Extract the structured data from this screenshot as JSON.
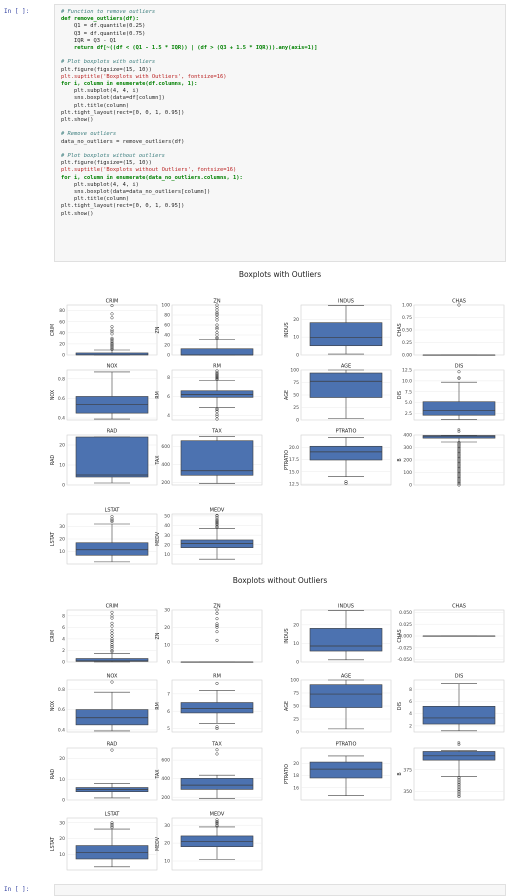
{
  "notebook": {
    "prompt_top": "In [ ]:",
    "prompt_bottom": "In [ ]:",
    "code_lines": [
      {
        "t": "c",
        "text": "# Function to remove outliers"
      },
      {
        "t": "k",
        "text": "def remove_outliers(df):"
      },
      {
        "t": "p",
        "text": "    Q1 = df.quantile(0.25)"
      },
      {
        "t": "p",
        "text": "    Q3 = df.quantile(0.75)"
      },
      {
        "t": "p",
        "text": "    IQR = Q3 - Q1"
      },
      {
        "t": "k",
        "text": "    return df[~((df < (Q1 - 1.5 * IQR)) | (df > (Q3 + 1.5 * IQR))).any(axis=1)]"
      },
      {
        "t": "p",
        "text": ""
      },
      {
        "t": "c",
        "text": "# Plot boxplots with outliers"
      },
      {
        "t": "p",
        "text": "plt.figure(figsize=(15, 10))"
      },
      {
        "t": "s",
        "text": "plt.suptitle('Boxplots with Outliers', fontsize=16)"
      },
      {
        "t": "k",
        "text": "for i, column in enumerate(df.columns, 1):"
      },
      {
        "t": "p",
        "text": "    plt.subplot(4, 4, i)"
      },
      {
        "t": "p",
        "text": "    sns.boxplot(data=df[column])"
      },
      {
        "t": "p",
        "text": "    plt.title(column)"
      },
      {
        "t": "p",
        "text": "plt.tight_layout(rect=[0, 0, 1, 0.95])"
      },
      {
        "t": "p",
        "text": "plt.show()"
      },
      {
        "t": "p",
        "text": ""
      },
      {
        "t": "c",
        "text": "# Remove outliers"
      },
      {
        "t": "p",
        "text": "data_no_outliers = remove_outliers(df)"
      },
      {
        "t": "p",
        "text": ""
      },
      {
        "t": "c",
        "text": "# Plot boxplots without outliers"
      },
      {
        "t": "p",
        "text": "plt.figure(figsize=(15, 10))"
      },
      {
        "t": "s",
        "text": "plt.suptitle('Boxplots without Outliers', fontsize=16)"
      },
      {
        "t": "k",
        "text": "for i, column in enumerate(data_no_outliers.columns, 1):"
      },
      {
        "t": "p",
        "text": "    plt.subplot(4, 4, i)"
      },
      {
        "t": "p",
        "text": "    sns.boxplot(data=data_no_outliers[column])"
      },
      {
        "t": "p",
        "text": "    plt.title(column)"
      },
      {
        "t": "p",
        "text": "plt.tight_layout(rect=[0, 0, 1, 0.95])"
      },
      {
        "t": "p",
        "text": "plt.show()"
      }
    ],
    "box_color": "#4c72b0"
  },
  "chart_data": [
    {
      "type": "boxplot",
      "title": "Boxplots with Outliers",
      "panels": [
        {
          "name": "CRIM",
          "ylim": [
            0,
            90
          ],
          "ticks": [
            0,
            20,
            40,
            60,
            80
          ],
          "q1": 0.1,
          "med": 0.3,
          "q3": 3.7,
          "wlo": 0,
          "whi": 9,
          "outliers": [
            10,
            12,
            14,
            16,
            18,
            20,
            22,
            25,
            28,
            30,
            38,
            42,
            45,
            51,
            67,
            74,
            89
          ]
        },
        {
          "name": "ZN",
          "ylim": [
            0,
            100
          ],
          "ticks": [
            0,
            20,
            40,
            60,
            80,
            100
          ],
          "q1": 0,
          "med": 0,
          "q3": 12.5,
          "wlo": 0,
          "whi": 31,
          "outliers": [
            33,
            35,
            40,
            45,
            52,
            55,
            60,
            70,
            75,
            80,
            82,
            85,
            90,
            95,
            100
          ]
        },
        {
          "name": "INDUS",
          "ylim": [
            0,
            28
          ],
          "ticks": [
            0,
            10,
            20
          ],
          "q1": 5.2,
          "med": 9.7,
          "q3": 18.1,
          "wlo": 0.5,
          "whi": 27.7,
          "outliers": []
        },
        {
          "name": "CHAS",
          "ylim": [
            0,
            1
          ],
          "ticks": [
            0.0,
            0.25,
            0.5,
            0.75,
            1.0
          ],
          "q1": 0,
          "med": 0,
          "q3": 0,
          "wlo": 0,
          "whi": 0,
          "outliers": [
            1
          ]
        },
        {
          "name": "NOX",
          "ylim": [
            0.38,
            0.89
          ],
          "ticks": [
            0.4,
            0.6,
            0.8
          ],
          "q1": 0.45,
          "med": 0.54,
          "q3": 0.62,
          "wlo": 0.39,
          "whi": 0.87,
          "outliers": []
        },
        {
          "name": "RM",
          "ylim": [
            3.5,
            8.8
          ],
          "ticks": [
            4,
            6,
            8
          ],
          "q1": 5.9,
          "med": 6.2,
          "q3": 6.6,
          "wlo": 4.8,
          "whi": 7.7,
          "outliers": [
            3.6,
            3.9,
            4.1,
            4.4,
            4.6,
            4.7,
            7.8,
            7.9,
            8.0,
            8.1,
            8.2,
            8.3,
            8.4,
            8.5,
            8.7
          ]
        },
        {
          "name": "AGE",
          "ylim": [
            0,
            100
          ],
          "ticks": [
            0,
            25,
            50,
            75,
            100
          ],
          "q1": 45,
          "med": 77.5,
          "q3": 94,
          "wlo": 3,
          "whi": 100,
          "outliers": []
        },
        {
          "name": "DIS",
          "ylim": [
            1,
            12.5
          ],
          "ticks": [
            2.5,
            5.0,
            7.5,
            10.0,
            12.5
          ],
          "q1": 2.1,
          "med": 3.2,
          "q3": 5.2,
          "wlo": 1.1,
          "whi": 9.7,
          "outliers": [
            10.6,
            10.7,
            12.1
          ]
        },
        {
          "name": "RAD",
          "ylim": [
            0,
            25
          ],
          "ticks": [
            0,
            10,
            20
          ],
          "q1": 4,
          "med": 5,
          "q3": 24,
          "wlo": 1,
          "whi": 24,
          "outliers": []
        },
        {
          "name": "TAX",
          "ylim": [
            170,
            730
          ],
          "ticks": [
            200,
            400,
            600
          ],
          "q1": 279,
          "med": 330,
          "q3": 666,
          "wlo": 187,
          "whi": 711,
          "outliers": []
        },
        {
          "name": "PTRATIO",
          "ylim": [
            12.3,
            22.5
          ],
          "ticks": [
            12.5,
            15.0,
            17.5,
            20.0
          ],
          "q1": 17.4,
          "med": 19.05,
          "q3": 20.2,
          "wlo": 14,
          "whi": 22,
          "outliers": [
            12.6,
            13.0
          ]
        },
        {
          "name": "B",
          "ylim": [
            0,
            400
          ],
          "ticks": [
            0,
            100,
            200,
            300,
            400
          ],
          "q1": 375,
          "med": 391,
          "q3": 396,
          "wlo": 344,
          "whi": 397,
          "outliers": [
            0,
            10,
            20,
            30,
            40,
            50,
            60,
            70,
            80,
            90,
            100,
            110,
            120,
            130,
            140,
            150,
            160,
            170,
            180,
            190,
            200,
            210,
            220,
            230,
            240,
            250,
            260,
            270,
            280,
            290,
            300,
            310,
            320,
            330,
            340
          ]
        },
        {
          "name": "LSTAT",
          "ylim": [
            0,
            40
          ],
          "ticks": [
            10,
            20,
            30
          ],
          "q1": 7,
          "med": 11.4,
          "q3": 17,
          "wlo": 1.7,
          "whi": 32,
          "outliers": [
            34,
            35,
            36,
            37.9
          ]
        },
        {
          "name": "MEDV",
          "ylim": [
            0,
            52
          ],
          "ticks": [
            10,
            20,
            30,
            40,
            50
          ],
          "q1": 17,
          "med": 21.2,
          "q3": 25,
          "wlo": 5,
          "whi": 37,
          "outliers": [
            38,
            39,
            41,
            42,
            43,
            44,
            45,
            46,
            48,
            50,
            50.5
          ]
        }
      ]
    },
    {
      "type": "boxplot",
      "title": "Boxplots without Outliers",
      "panels": [
        {
          "name": "CRIM",
          "ylim": [
            0,
            9
          ],
          "ticks": [
            0,
            2,
            4,
            6,
            8
          ],
          "q1": 0.1,
          "med": 0.2,
          "q3": 0.6,
          "wlo": 0,
          "whi": 1.5,
          "outliers": [
            1.8,
            2.0,
            2.4,
            2.7,
            3.0,
            3.4,
            3.7,
            4.0,
            4.5,
            5.0,
            5.5,
            6.2,
            6.7,
            7.6,
            8.0,
            8.6
          ]
        },
        {
          "name": "ZN",
          "ylim": [
            0,
            30
          ],
          "ticks": [
            0,
            10,
            20,
            30
          ],
          "q1": 0,
          "med": 0,
          "q3": 0,
          "wlo": 0,
          "whi": 0,
          "outliers": [
            12.5,
            17.5,
            20,
            21,
            22,
            25,
            28,
            30
          ]
        },
        {
          "name": "INDUS",
          "ylim": [
            0,
            28
          ],
          "ticks": [
            0,
            10,
            20
          ],
          "q1": 5.9,
          "med": 8.6,
          "q3": 18.1,
          "wlo": 1.2,
          "whi": 27.7,
          "outliers": []
        },
        {
          "name": "CHAS",
          "ylim": [
            -0.055,
            0.055
          ],
          "ticks": [
            -0.05,
            -0.025,
            0.0,
            0.025,
            0.05
          ],
          "q1": 0,
          "med": 0,
          "q3": 0,
          "wlo": 0,
          "whi": 0,
          "outliers": []
        },
        {
          "name": "NOX",
          "ylim": [
            0.38,
            0.89
          ],
          "ticks": [
            0.4,
            0.6,
            0.8
          ],
          "q1": 0.45,
          "med": 0.52,
          "q3": 0.6,
          "wlo": 0.39,
          "whi": 0.77,
          "outliers": [
            0.87
          ]
        },
        {
          "name": "RM",
          "ylim": [
            4.8,
            7.8
          ],
          "ticks": [
            5,
            6,
            7
          ],
          "q1": 5.9,
          "med": 6.15,
          "q3": 6.5,
          "wlo": 5.3,
          "whi": 7.2,
          "outliers": [
            5.0,
            5.1,
            7.6
          ]
        },
        {
          "name": "AGE",
          "ylim": [
            0,
            100
          ],
          "ticks": [
            0,
            25,
            50,
            75,
            100
          ],
          "q1": 47,
          "med": 73,
          "q3": 91,
          "wlo": 6,
          "whi": 100,
          "outliers": []
        },
        {
          "name": "DIS",
          "ylim": [
            1,
            9.5
          ],
          "ticks": [
            2,
            4,
            6,
            8
          ],
          "q1": 2.3,
          "med": 3.3,
          "q3": 5.2,
          "wlo": 1.2,
          "whi": 8.9,
          "outliers": []
        },
        {
          "name": "RAD",
          "ylim": [
            0,
            25
          ],
          "ticks": [
            0,
            10,
            20
          ],
          "q1": 4,
          "med": 5,
          "q3": 6,
          "wlo": 1,
          "whi": 8,
          "outliers": [
            24
          ]
        },
        {
          "name": "TAX",
          "ylim": [
            170,
            730
          ],
          "ticks": [
            200,
            400,
            600
          ],
          "q1": 284,
          "med": 330,
          "q3": 403,
          "wlo": 187,
          "whi": 437,
          "outliers": [
            666,
            711
          ]
        },
        {
          "name": "PTRATIO",
          "ylim": [
            14,
            22.5
          ],
          "ticks": [
            16,
            18,
            20
          ],
          "q1": 17.6,
          "med": 19.05,
          "q3": 20.2,
          "wlo": 14.7,
          "whi": 21.2,
          "outliers": []
        },
        {
          "name": "B",
          "ylim": [
            340,
            400
          ],
          "ticks": [
            350,
            375
          ],
          "q1": 386,
          "med": 391,
          "q3": 396,
          "wlo": 367,
          "whi": 397,
          "outliers": [
            366,
            364,
            362,
            360,
            358,
            356,
            354,
            352,
            350,
            348,
            346,
            344
          ]
        },
        {
          "name": "LSTAT",
          "ylim": [
            0,
            33
          ],
          "ticks": [
            10,
            20,
            30
          ],
          "q1": 7,
          "med": 11,
          "q3": 15.5,
          "wlo": 2,
          "whi": 26,
          "outliers": [
            27,
            28,
            29,
            30
          ]
        },
        {
          "name": "MEDV",
          "ylim": [
            5,
            34
          ],
          "ticks": [
            10,
            20,
            30
          ],
          "q1": 18,
          "med": 21,
          "q3": 24,
          "wlo": 11,
          "whi": 29,
          "outliers": [
            29.5,
            30,
            31,
            31.5,
            32,
            33
          ]
        }
      ]
    }
  ]
}
